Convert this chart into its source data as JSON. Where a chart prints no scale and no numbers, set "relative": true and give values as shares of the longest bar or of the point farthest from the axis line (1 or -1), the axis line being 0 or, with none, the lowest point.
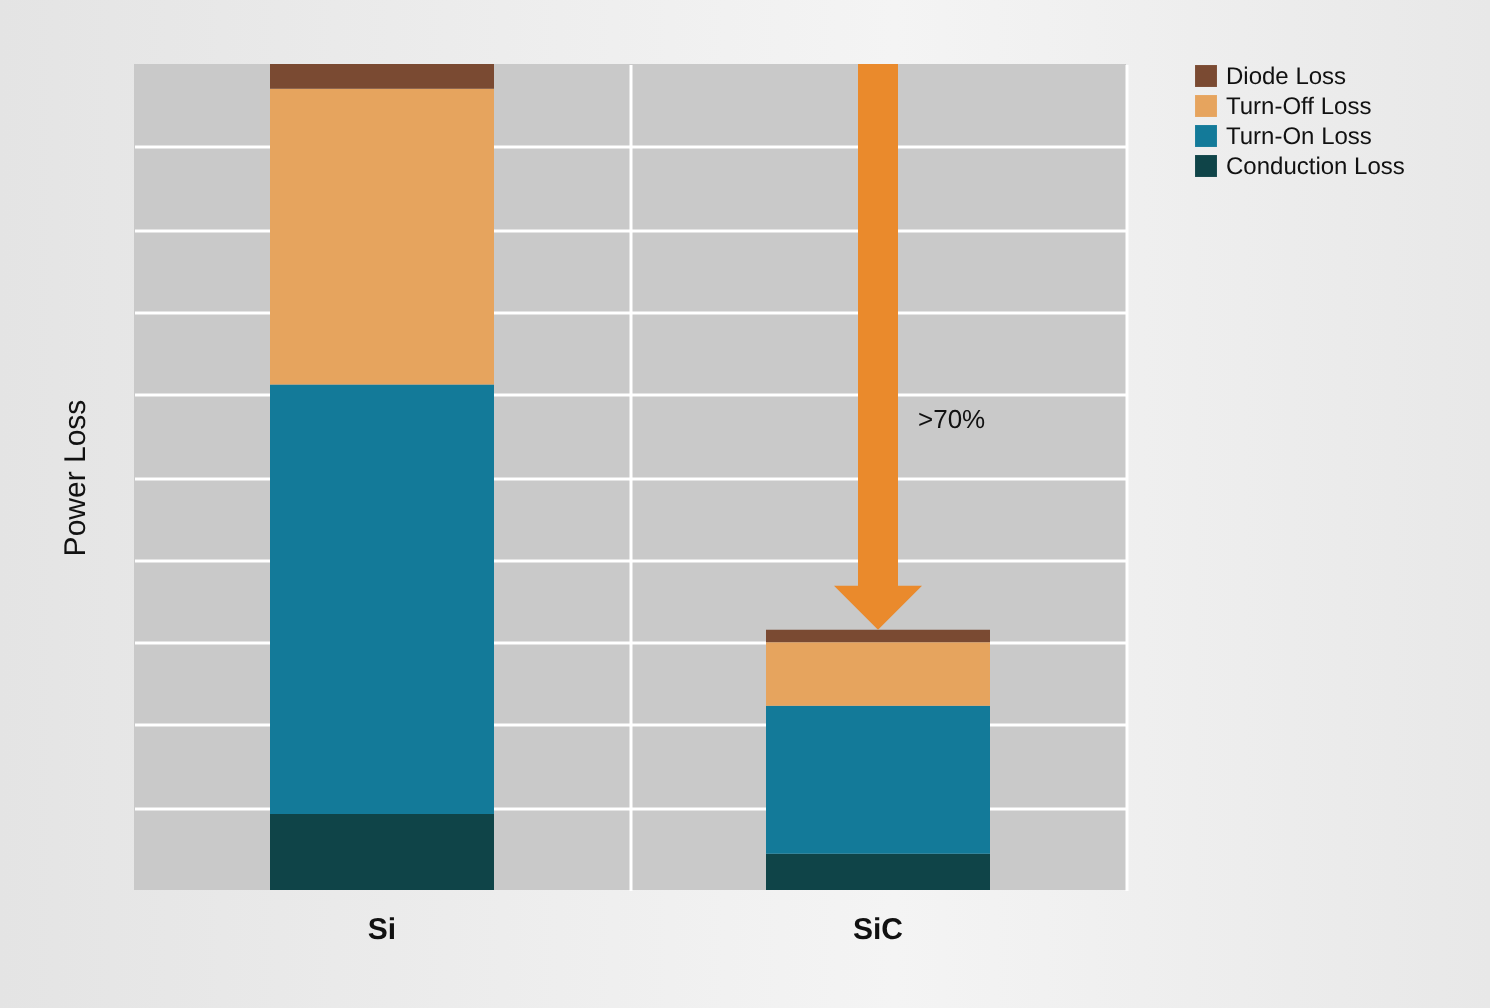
{
  "chart_data": {
    "type": "bar",
    "ylabel": "Power Loss",
    "categories": [
      "Si",
      "SiC"
    ],
    "stacked": true,
    "relative": true,
    "grid": true,
    "legend": "top right",
    "series": [
      {
        "name": "Conduction Loss",
        "color": "#0f4448",
        "values": [
          0.092,
          0.044
        ]
      },
      {
        "name": "Turn-On Loss",
        "color": "#137a99",
        "values": [
          0.52,
          0.179
        ]
      },
      {
        "name": "Turn-Off Loss",
        "color": "#e6a45e",
        "values": [
          0.358,
          0.077
        ]
      },
      {
        "name": "Diode Loss",
        "color": "#7a4a32",
        "values": [
          0.03,
          0.015
        ]
      }
    ],
    "annotations": [
      ">70%"
    ]
  }
}
